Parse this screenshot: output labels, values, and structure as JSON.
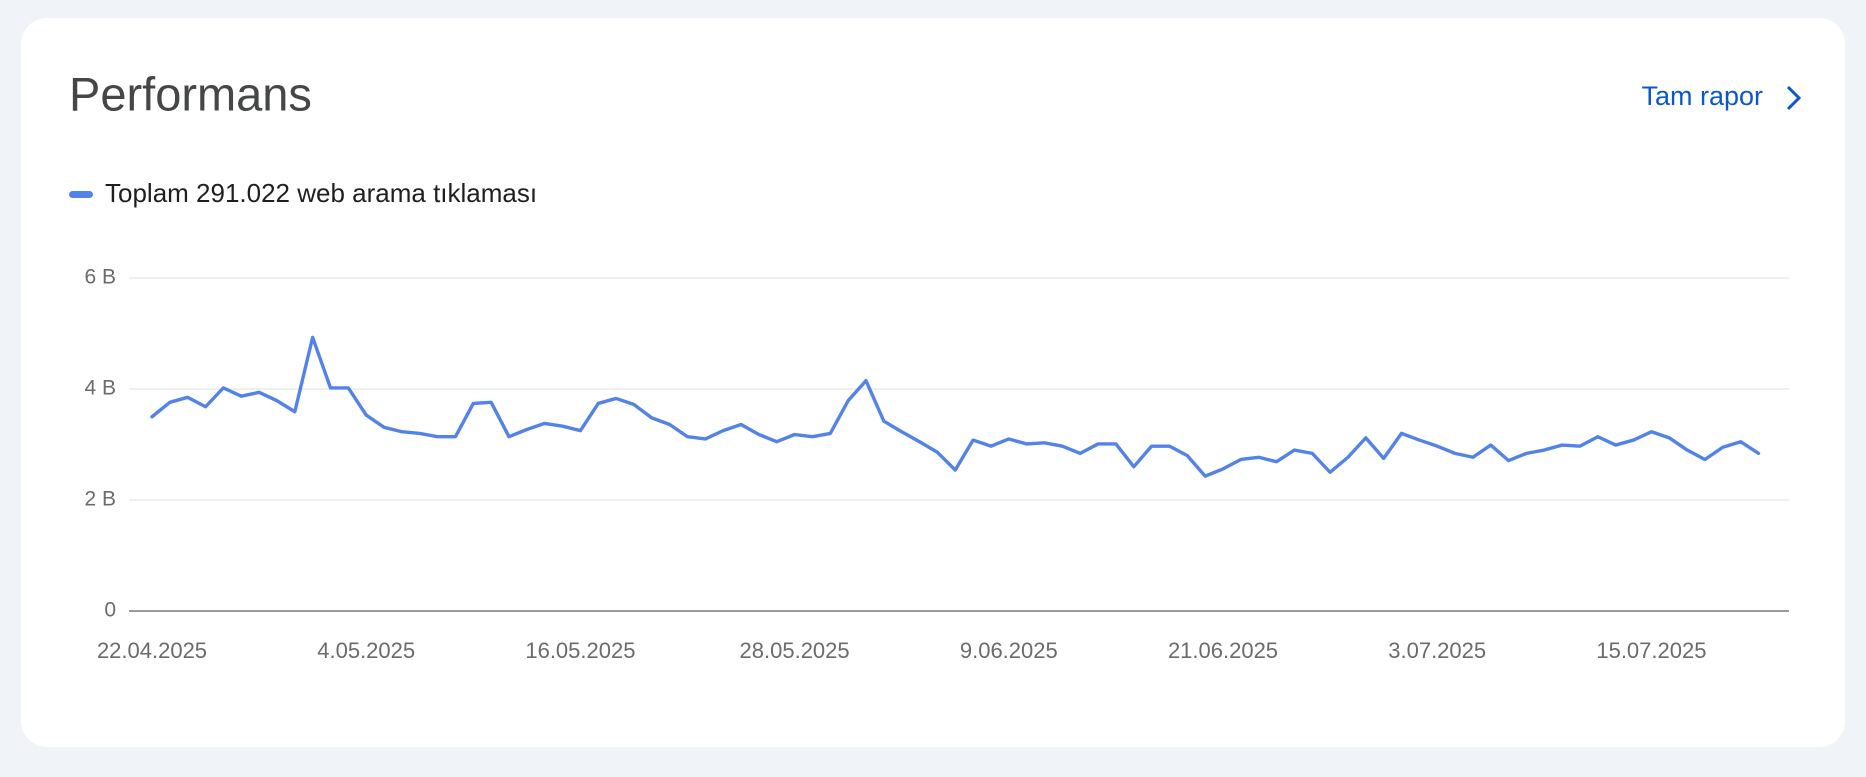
{
  "chart_data": {
    "type": "line",
    "title": "Performans",
    "link": "Tam rapor",
    "categories": [
      "22.04.2025",
      null,
      null,
      null,
      null,
      null,
      null,
      null,
      null,
      null,
      null,
      null,
      "4.05.2025",
      null,
      null,
      null,
      null,
      null,
      null,
      null,
      null,
      null,
      null,
      null,
      "16.05.2025",
      null,
      null,
      null,
      null,
      null,
      null,
      null,
      null,
      null,
      null,
      null,
      "28.05.2025",
      null,
      null,
      null,
      null,
      null,
      null,
      null,
      null,
      null,
      null,
      null,
      "9.06.2025",
      null,
      null,
      null,
      null,
      null,
      null,
      null,
      null,
      null,
      null,
      null,
      "21.06.2025",
      null,
      null,
      null,
      null,
      null,
      null,
      null,
      null,
      null,
      null,
      null,
      "3.07.2025",
      null,
      null,
      null,
      null,
      null,
      null,
      null,
      null,
      null,
      null,
      null,
      "15.07.2025",
      null,
      null,
      null,
      null,
      null,
      null
    ],
    "series": [
      {
        "name": "Toplam 291.022 web arama tıklaması",
        "color": "#5383e8",
        "values": [
          3500,
          3760,
          3850,
          3680,
          4020,
          3870,
          3940,
          3790,
          3590,
          4930,
          4020,
          4020,
          3530,
          3310,
          3230,
          3200,
          3140,
          3140,
          3740,
          3760,
          3140,
          3270,
          3380,
          3330,
          3250,
          3740,
          3830,
          3720,
          3480,
          3360,
          3140,
          3100,
          3250,
          3360,
          3180,
          3050,
          3180,
          3140,
          3200,
          3790,
          4150,
          3420,
          3230,
          3050,
          2860,
          2540,
          3080,
          2970,
          3100,
          3010,
          3030,
          2970,
          2840,
          3010,
          3010,
          2600,
          2970,
          2970,
          2800,
          2430,
          2560,
          2730,
          2770,
          2690,
          2900,
          2840,
          2500,
          2770,
          3120,
          2750,
          3200,
          3080,
          2970,
          2840,
          2770,
          2990,
          2710,
          2840,
          2900,
          2990,
          2970,
          3140,
          2990,
          3080,
          3230,
          3120,
          2900,
          2730,
          2950,
          3050,
          2840
        ]
      }
    ],
    "ylim": [
      0,
      6000
    ],
    "yticks": [
      0,
      {
        "value": 2000,
        "label": "2 B"
      },
      {
        "value": 4000,
        "label": "4 B"
      },
      {
        "value": 6000,
        "label": "6 B"
      }
    ],
    "grid": true
  }
}
